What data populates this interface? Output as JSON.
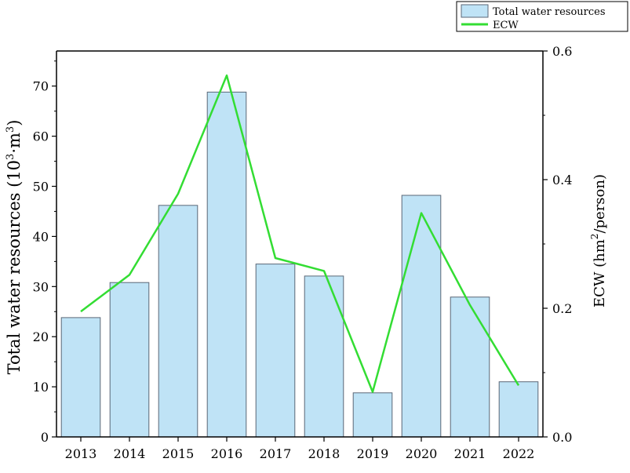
{
  "chart_data": {
    "type": "bar",
    "categories": [
      "2013",
      "2014",
      "2015",
      "2016",
      "2017",
      "2018",
      "2019",
      "2020",
      "2021",
      "2022"
    ],
    "series": [
      {
        "name": "Total water resources",
        "kind": "bar",
        "axis": "left",
        "values": [
          23.8,
          30.8,
          46.2,
          68.8,
          34.5,
          32.1,
          8.8,
          48.2,
          27.9,
          11.0
        ]
      },
      {
        "name": "ECW",
        "kind": "line",
        "axis": "right",
        "values": [
          0.195,
          0.252,
          0.378,
          0.562,
          0.278,
          0.258,
          0.07,
          0.348,
          0.205,
          0.08
        ]
      }
    ],
    "y_left": {
      "label_main": "Total water resources (10",
      "label_sup1": "3",
      "label_mid": "·m",
      "label_sup2": "3",
      "label_end": ")",
      "range": [
        0,
        77
      ],
      "ticks": [
        0,
        10,
        20,
        30,
        40,
        50,
        60,
        70
      ],
      "tick_labels": [
        "0",
        "10",
        "20",
        "30",
        "40",
        "50",
        "60",
        "70"
      ]
    },
    "y_right": {
      "label_main": "ECW (hm",
      "label_sup": "2",
      "label_end": "/person)",
      "range": [
        0,
        0.6
      ],
      "ticks": [
        0,
        0.2,
        0.4,
        0.6
      ],
      "tick_labels": [
        "0.0",
        "0.2",
        "0.4",
        "0.6"
      ]
    },
    "legend": {
      "placement": "top-right",
      "entries": [
        "Total water resources",
        "ECW"
      ]
    },
    "colors": {
      "bar_fill": "#bfe3f6",
      "bar_stroke": "#5b6777",
      "line": "#33dd33",
      "axis": "#000000"
    },
    "grid": false
  }
}
